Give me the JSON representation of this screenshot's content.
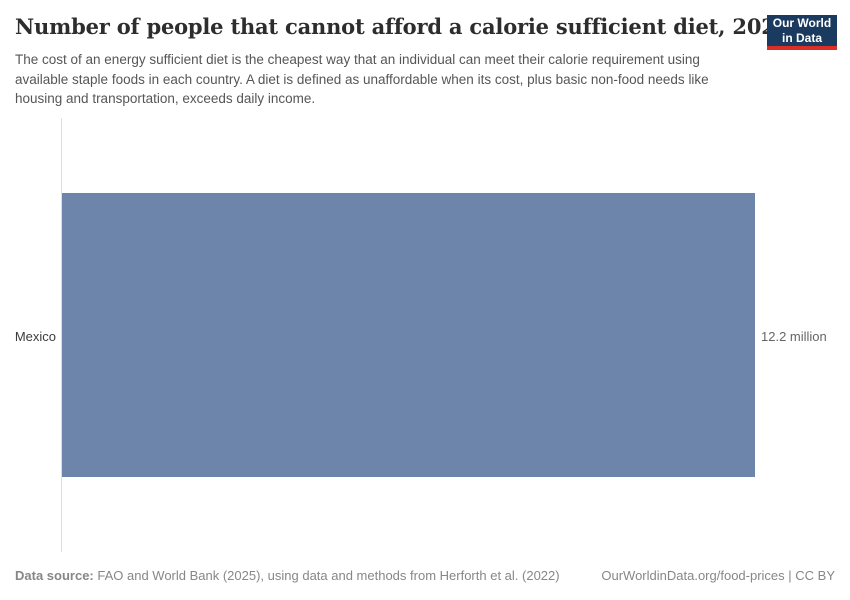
{
  "header": {
    "title": "Number of people that cannot afford a calorie sufficient diet, 2021",
    "subtitle": "The cost of an energy sufficient diet is the cheapest way that an individual can meet their calorie requirement using available staple foods in each country. A diet is defined as unaffordable when its cost, plus basic non-food needs like housing and transportation, exceeds daily income.",
    "logo": {
      "line1": "Our World",
      "line2": "in Data",
      "bg_color": "#1b3a5f",
      "accent_color": "#dc2e27"
    }
  },
  "chart_data": {
    "type": "bar",
    "orientation": "horizontal",
    "title": "Number of people that cannot afford a calorie sufficient diet, 2021",
    "categories": [
      "Mexico"
    ],
    "values": [
      12.2
    ],
    "unit": "million",
    "value_labels": [
      "12.2 million"
    ],
    "xlabel": "",
    "ylabel": "",
    "xlim": [
      0,
      12.2
    ],
    "grid": false,
    "legend": "none",
    "bar_color": "#6d84ab",
    "axis_color": "#dedede"
  },
  "footer": {
    "datasource_label": "Data source:",
    "datasource_text": " FAO and World Bank (2025), using data and methods from Herforth et al. (2022)",
    "link": "OurWorldinData.org/food-prices | CC BY"
  }
}
